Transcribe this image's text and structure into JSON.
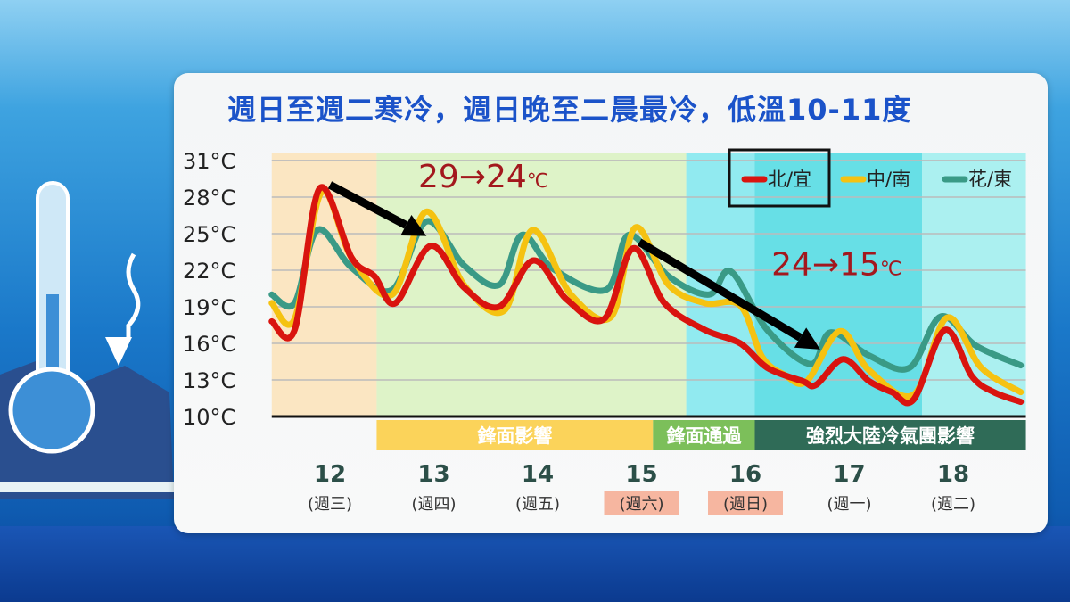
{
  "title": "週日至週二寒冷，週日晚至二晨最冷，低溫10-11度",
  "chart_data": {
    "type": "line",
    "title": "週日至週二寒冷，週日晚至二晨最冷，低溫10-11度",
    "xlabel": "",
    "ylabel": "",
    "ylim": [
      10,
      31
    ],
    "xlim": [
      11.44,
      18.7
    ],
    "y_ticks": [
      "31°C",
      "28°C",
      "25°C",
      "22°C",
      "19°C",
      "16°C",
      "13°C",
      "10°C"
    ],
    "y_tick_values": [
      31,
      28,
      25,
      22,
      19,
      16,
      13,
      10
    ],
    "grid": true,
    "legend_position": "top-right",
    "x_ticks": [
      {
        "day": 12,
        "label": "12",
        "weekday": "(週三)",
        "highlight": false
      },
      {
        "day": 13,
        "label": "13",
        "weekday": "(週四)",
        "highlight": false
      },
      {
        "day": 14,
        "label": "14",
        "weekday": "(週五)",
        "highlight": false
      },
      {
        "day": 15,
        "label": "15",
        "weekday": "(週六)",
        "highlight": true
      },
      {
        "day": 16,
        "label": "16",
        "weekday": "(週日)",
        "highlight": true
      },
      {
        "day": 17,
        "label": "17",
        "weekday": "(週一)",
        "highlight": false
      },
      {
        "day": 18,
        "label": "18",
        "weekday": "(週二)",
        "highlight": false
      }
    ],
    "series": [
      {
        "name": "北/宜",
        "color": "#d9140f",
        "points": [
          [
            11.44,
            17.8
          ],
          [
            11.66,
            17.1
          ],
          [
            11.9,
            28.7
          ],
          [
            12.21,
            23
          ],
          [
            12.43,
            21.5
          ],
          [
            12.63,
            19.3
          ],
          [
            12.97,
            24
          ],
          [
            13.29,
            20.6
          ],
          [
            13.63,
            19
          ],
          [
            13.96,
            22.8
          ],
          [
            14.28,
            19.6
          ],
          [
            14.64,
            18
          ],
          [
            14.92,
            23.8
          ],
          [
            15.22,
            19.3
          ],
          [
            15.61,
            17.1
          ],
          [
            15.95,
            16
          ],
          [
            16.21,
            14
          ],
          [
            16.55,
            12.9
          ],
          [
            16.68,
            12.6
          ],
          [
            16.94,
            14.7
          ],
          [
            17.19,
            12.9
          ],
          [
            17.41,
            12
          ],
          [
            17.62,
            11.4
          ],
          [
            17.92,
            17.1
          ],
          [
            18.18,
            13.3
          ],
          [
            18.39,
            12
          ],
          [
            18.65,
            11.2
          ]
        ]
      },
      {
        "name": "中/南",
        "color": "#f5c211",
        "points": [
          [
            11.44,
            19.3
          ],
          [
            11.66,
            18
          ],
          [
            11.92,
            28.4
          ],
          [
            12.21,
            23
          ],
          [
            12.6,
            20
          ],
          [
            12.93,
            26.8
          ],
          [
            13.29,
            20.8
          ],
          [
            13.68,
            18.7
          ],
          [
            13.95,
            25.3
          ],
          [
            14.32,
            20
          ],
          [
            14.71,
            18.2
          ],
          [
            14.94,
            25.5
          ],
          [
            15.26,
            20.8
          ],
          [
            15.61,
            19.3
          ],
          [
            15.95,
            19.1
          ],
          [
            16.16,
            14.9
          ],
          [
            16.38,
            13.4
          ],
          [
            16.59,
            12.9
          ],
          [
            16.91,
            17
          ],
          [
            17.19,
            13.8
          ],
          [
            17.62,
            11.8
          ],
          [
            17.94,
            18.1
          ],
          [
            18.27,
            14
          ],
          [
            18.65,
            12
          ]
        ]
      },
      {
        "name": "花/東",
        "color": "#3a9a86",
        "points": [
          [
            11.44,
            20
          ],
          [
            11.66,
            19.3
          ],
          [
            11.88,
            25.3
          ],
          [
            12.21,
            22.2
          ],
          [
            12.6,
            20.4
          ],
          [
            12.93,
            26
          ],
          [
            13.29,
            22.4
          ],
          [
            13.63,
            20.8
          ],
          [
            13.85,
            24.9
          ],
          [
            14.15,
            22.1
          ],
          [
            14.66,
            20.4
          ],
          [
            14.88,
            24.9
          ],
          [
            15.26,
            21.5
          ],
          [
            15.65,
            20
          ],
          [
            15.86,
            21.9
          ],
          [
            16.21,
            17.1
          ],
          [
            16.63,
            14.3
          ],
          [
            16.82,
            16.9
          ],
          [
            17.19,
            15
          ],
          [
            17.58,
            14
          ],
          [
            17.88,
            18.2
          ],
          [
            18.22,
            15.8
          ],
          [
            18.65,
            14.2
          ]
        ]
      }
    ],
    "periods": [
      {
        "label": "鋒面影響",
        "from": 12.45,
        "to": 15.11,
        "color": "#fbd35a"
      },
      {
        "label": "鋒面通過",
        "from": 15.11,
        "to": 16.09,
        "color": "#7cbf5a"
      },
      {
        "label": "強烈大陸冷氣團影響",
        "from": 16.09,
        "to": 18.7,
        "color": "#2f6b57"
      }
    ],
    "backgrounds": [
      {
        "from": 11.44,
        "to": 12.45,
        "color": "#fbe3b8"
      },
      {
        "from": 12.45,
        "to": 15.43,
        "color": "#d9f2c0"
      },
      {
        "from": 15.43,
        "to": 16.09,
        "color": "#7fe8ee"
      },
      {
        "from": 16.09,
        "to": 17.7,
        "color": "#4ddbe3"
      },
      {
        "from": 17.7,
        "to": 18.7,
        "color": "#9defef"
      }
    ],
    "annotations": [
      {
        "value": "29→24",
        "unit": "℃",
        "at": [
          12.85,
          28.8
        ],
        "arrow": [
          [
            12.0,
            29.0
          ],
          [
            12.93,
            24.8
          ]
        ]
      },
      {
        "value": "24→15",
        "unit": "℃",
        "at": [
          16.25,
          21.6
        ],
        "arrow": [
          [
            14.98,
            24.3
          ],
          [
            16.72,
            15.5
          ]
        ]
      }
    ],
    "legend_highlight": "北/宜"
  }
}
